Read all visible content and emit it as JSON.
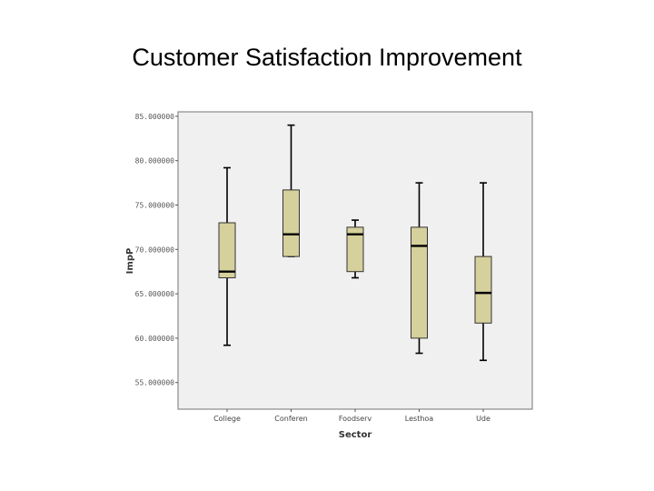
{
  "slide": {
    "title": "Customer Satisfaction Improvement"
  },
  "chart_data": {
    "type": "box",
    "xlabel": "Sector",
    "ylabel": "ImpP",
    "ylim": [
      52,
      85.5
    ],
    "yticks": [
      85,
      80,
      75,
      70,
      65,
      60,
      55
    ],
    "ytick_labels": [
      "85.000000",
      "80.000000",
      "75.000000",
      "70.000000",
      "65.000000",
      "60.000000",
      "55.000000"
    ],
    "categories": [
      "College",
      "Conferen",
      "Foodserv",
      "Lesthoa",
      "Ude"
    ],
    "boxes": [
      {
        "category": "College",
        "min": 59.2,
        "q1": 66.8,
        "median": 67.5,
        "q3": 73.0,
        "max": 79.2
      },
      {
        "category": "Conferen",
        "min": 69.2,
        "q1": 69.2,
        "median": 71.7,
        "q3": 76.7,
        "max": 84.0
      },
      {
        "category": "Foodserv",
        "min": 66.8,
        "q1": 67.5,
        "median": 71.7,
        "q3": 72.5,
        "max": 73.3
      },
      {
        "category": "Lesthoa",
        "min": 58.3,
        "q1": 60.0,
        "median": 70.4,
        "q3": 72.5,
        "max": 77.5
      },
      {
        "category": "Ude",
        "min": 57.5,
        "q1": 61.7,
        "median": 65.1,
        "q3": 69.2,
        "max": 77.5
      }
    ],
    "colors": {
      "box_fill": "#d6d09c",
      "plot_bg": "#f0f0f0",
      "line": "#000000"
    }
  }
}
